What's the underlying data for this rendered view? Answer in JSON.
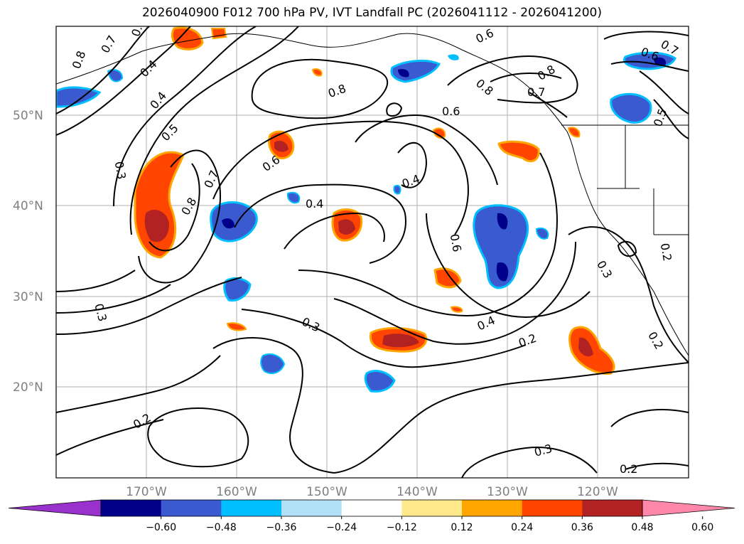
{
  "title": "2026040900 F012 700 hPa PV, IVT Landfall PC (2026041112 - 2026041200)",
  "map": {
    "lat_labels": [
      "50°N",
      "40°N",
      "30°N",
      "20°N"
    ],
    "lon_labels": [
      "170°W",
      "160°W",
      "150°W",
      "140°W",
      "130°W",
      "120°W"
    ],
    "contour_labels": [
      "0.7",
      "0.8",
      "0.6",
      "0.4",
      "0.4",
      "0.5",
      "0.3",
      "0.7",
      "0.8",
      "0.6",
      "0.8",
      "0.4",
      "0.4",
      "0.6",
      "0.8",
      "0.7",
      "0.8",
      "0.6",
      "0.7",
      "0.6",
      "0.5",
      "0.6",
      "0.3",
      "0.2",
      "0.4",
      "0.3",
      "0.2",
      "0.3",
      "0.2",
      "0.3",
      "0.2",
      "0.2"
    ],
    "grid": true,
    "contour_color": "#000000",
    "gridline_color": "#b0b0b0"
  },
  "colorbar": {
    "colors": [
      "#9932cc",
      "#00008b",
      "#3a5bcf",
      "#00bfff",
      "#b0e0f8",
      "#ffffff",
      "#ffe88a",
      "#ffa500",
      "#ff4500",
      "#b22222",
      "#ff88aa"
    ],
    "tick_labels": [
      "−0.60",
      "−0.48",
      "−0.36",
      "−0.24",
      "−0.12",
      "0.12",
      "0.24",
      "0.36",
      "0.48",
      "0.60"
    ],
    "extend": "both"
  }
}
